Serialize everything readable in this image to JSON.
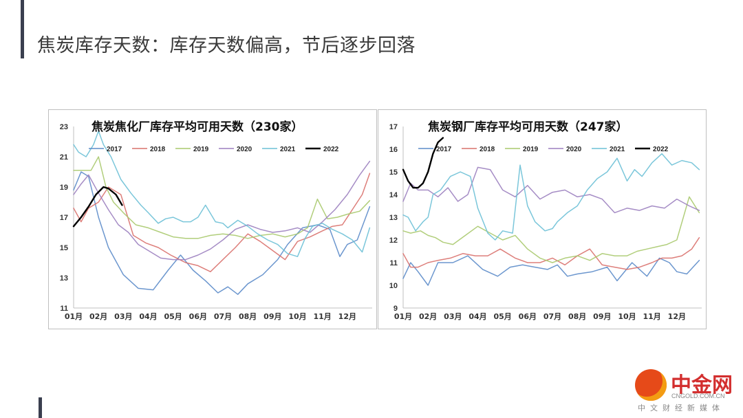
{
  "page": {
    "title": "焦炭库存天数：库存天数偏高，节后逐步回落"
  },
  "logo": {
    "name": "中金网",
    "domain": "CNGOLD.COM.CN",
    "tagline": "中文财经新媒体"
  },
  "chart_data": [
    {
      "type": "line",
      "title": "焦炭焦化厂库存平均可用天数（230家）",
      "xlabel": "",
      "ylabel": "",
      "x_ticks": [
        "01月",
        "02月",
        "03月",
        "04月",
        "05月",
        "06月",
        "07月",
        "08月",
        "09月",
        "10月",
        "11月",
        "12月"
      ],
      "ylim": [
        11,
        23
      ],
      "y_ticks": [
        11,
        13,
        15,
        17,
        19,
        21,
        23
      ],
      "legend_position": "top",
      "grid": false,
      "series": [
        {
          "name": "2017",
          "color": "#5b8bc9",
          "x": [
            0,
            0.3,
            0.6,
            1,
            1.4,
            2,
            2.6,
            3.2,
            3.8,
            4.3,
            4.8,
            5.3,
            5.8,
            6.2,
            6.6,
            7,
            7.6,
            8.2,
            8.6,
            9.2,
            9.8,
            10.3,
            10.7,
            11,
            11.4,
            11.9
          ],
          "values": [
            18.8,
            20.0,
            19.7,
            17.0,
            15.0,
            13.2,
            12.3,
            12.2,
            13.5,
            14.5,
            13.5,
            12.8,
            12.0,
            12.4,
            11.9,
            12.6,
            13.2,
            14.2,
            15.2,
            16.3,
            16.5,
            16.2,
            14.4,
            15.2,
            15.5,
            17.7
          ]
        },
        {
          "name": "2018",
          "color": "#d9706b",
          "x": [
            0,
            0.3,
            0.6,
            1,
            1.4,
            1.9,
            2.4,
            2.9,
            3.4,
            3.9,
            4.5,
            5,
            5.5,
            6,
            6.5,
            7,
            7.5,
            8,
            8.5,
            9,
            9.5,
            10,
            10.4,
            10.8,
            11.2,
            11.6,
            11.9
          ],
          "values": [
            17.6,
            16.7,
            17.6,
            18.0,
            19.0,
            18.5,
            15.8,
            15.3,
            15.0,
            14.5,
            14.0,
            13.8,
            13.4,
            14.2,
            15.0,
            15.9,
            15.4,
            14.8,
            14.2,
            15.4,
            15.7,
            16.1,
            16.4,
            16.5,
            17.5,
            18.5,
            19.9
          ]
        },
        {
          "name": "2019",
          "color": "#a8c96d",
          "x": [
            0,
            0.3,
            0.7,
            1,
            1.3,
            1.6,
            2,
            2.5,
            3,
            3.5,
            4,
            4.5,
            5,
            5.5,
            6,
            6.5,
            7,
            7.5,
            8,
            8.5,
            9,
            9.4,
            9.8,
            10.2,
            10.6,
            11,
            11.5,
            11.9
          ],
          "values": [
            20.1,
            20.1,
            20.1,
            21.0,
            19.0,
            18.0,
            17.3,
            16.5,
            16.3,
            16.0,
            15.7,
            15.6,
            15.6,
            15.8,
            15.9,
            15.8,
            15.6,
            15.8,
            15.9,
            15.7,
            15.9,
            16.3,
            18.2,
            16.9,
            17.0,
            17.2,
            17.4,
            18.1
          ]
        },
        {
          "name": "2020",
          "color": "#9b7fbf",
          "x": [
            0,
            0.3,
            0.6,
            1,
            1.4,
            1.8,
            2.2,
            2.6,
            3,
            3.5,
            4,
            4.5,
            5,
            5.5,
            6,
            6.5,
            7,
            7.5,
            8,
            8.5,
            9,
            9.5,
            10,
            10.5,
            11,
            11.5,
            11.9
          ],
          "values": [
            18.5,
            19.2,
            19.8,
            18.6,
            17.5,
            16.5,
            16.0,
            15.2,
            14.8,
            14.3,
            14.2,
            14.2,
            14.5,
            14.9,
            15.5,
            16.2,
            16.5,
            16.2,
            16.0,
            16.1,
            16.3,
            16.0,
            16.7,
            17.5,
            18.5,
            19.8,
            20.7
          ]
        },
        {
          "name": "2021",
          "color": "#6cc0d6",
          "x": [
            0,
            0.2,
            0.5,
            0.8,
            1,
            1.2,
            1.5,
            1.9,
            2.3,
            2.7,
            3,
            3.4,
            3.7,
            4,
            4.4,
            4.7,
            5,
            5.3,
            5.7,
            6,
            6.2,
            6.6,
            7,
            7.4,
            7.8,
            8.2,
            8.6,
            9,
            9.3,
            9.6,
            10,
            10.4,
            10.8,
            11.2,
            11.6,
            11.9
          ],
          "values": [
            21.8,
            21.3,
            21.0,
            21.8,
            22.7,
            21.8,
            21.0,
            19.5,
            18.6,
            17.8,
            17.3,
            16.6,
            16.9,
            17.0,
            16.7,
            16.7,
            17.0,
            17.8,
            16.7,
            16.6,
            16.3,
            16.8,
            16.4,
            15.9,
            15.5,
            15.2,
            14.6,
            14.4,
            15.6,
            16.4,
            16.6,
            16.2,
            15.9,
            15.5,
            14.7,
            16.3
          ]
        },
        {
          "name": "2022",
          "color": "#000000",
          "x": [
            0,
            0.3,
            0.6,
            0.9,
            1.2,
            1.4,
            1.7,
            1.95
          ],
          "values": [
            16.4,
            17.0,
            17.7,
            18.5,
            19.0,
            18.9,
            18.5,
            17.8
          ]
        }
      ]
    },
    {
      "type": "line",
      "title": "焦炭钢厂库存平均可用天数（247家）",
      "xlabel": "",
      "ylabel": "",
      "x_ticks": [
        "01月",
        "02月",
        "03月",
        "04月",
        "05月",
        "06月",
        "07月",
        "08月",
        "09月",
        "10月",
        "11月",
        "12月"
      ],
      "ylim": [
        9,
        17
      ],
      "y_ticks": [
        9,
        10,
        11,
        12,
        13,
        14,
        15,
        16,
        17
      ],
      "legend_position": "top",
      "grid": false,
      "series": [
        {
          "name": "2017",
          "color": "#5b8bc9",
          "x": [
            0,
            0.3,
            0.6,
            1,
            1.4,
            2,
            2.6,
            3.2,
            3.8,
            4.3,
            4.8,
            5.3,
            5.8,
            6.2,
            6.6,
            7,
            7.6,
            8.2,
            8.6,
            9.2,
            9.8,
            10.3,
            10.7,
            11,
            11.4,
            11.9
          ],
          "values": [
            10.3,
            11.0,
            10.6,
            10.0,
            11.0,
            11.0,
            11.3,
            10.7,
            10.4,
            10.8,
            10.9,
            10.8,
            10.7,
            10.9,
            10.4,
            10.5,
            10.6,
            10.8,
            10.2,
            11.0,
            10.4,
            11.2,
            11.0,
            10.6,
            10.5,
            11.1
          ]
        },
        {
          "name": "2018",
          "color": "#d9706b",
          "x": [
            0,
            0.3,
            0.6,
            1,
            1.4,
            1.9,
            2.4,
            2.9,
            3.4,
            3.9,
            4.5,
            5,
            5.5,
            6,
            6.5,
            7,
            7.5,
            8,
            8.5,
            9,
            9.5,
            10,
            10.4,
            10.8,
            11.2,
            11.6,
            11.9
          ],
          "values": [
            11.4,
            10.8,
            10.8,
            11.0,
            11.1,
            11.2,
            11.4,
            11.3,
            11.3,
            11.6,
            11.2,
            11.0,
            11.0,
            11.2,
            10.9,
            11.3,
            11.6,
            10.9,
            10.8,
            10.7,
            10.8,
            11.0,
            11.2,
            11.2,
            11.3,
            11.6,
            12.1
          ]
        },
        {
          "name": "2019",
          "color": "#a8c96d",
          "x": [
            0,
            0.3,
            0.7,
            1,
            1.3,
            1.6,
            2,
            2.5,
            3,
            3.5,
            4,
            4.5,
            5,
            5.5,
            6,
            6.5,
            7,
            7.5,
            8,
            8.5,
            9,
            9.4,
            9.8,
            10.2,
            10.6,
            11,
            11.5,
            11.9
          ],
          "values": [
            12.4,
            12.3,
            12.4,
            12.2,
            12.1,
            11.9,
            11.8,
            12.2,
            12.6,
            12.3,
            12.0,
            12.2,
            11.6,
            11.2,
            11.0,
            11.2,
            11.3,
            11.1,
            11.4,
            11.3,
            11.3,
            11.5,
            11.6,
            11.7,
            11.8,
            12.0,
            13.9,
            13.2
          ]
        },
        {
          "name": "2020",
          "color": "#9b7fbf",
          "x": [
            0,
            0.3,
            0.6,
            1,
            1.4,
            1.8,
            2.2,
            2.6,
            3,
            3.5,
            4,
            4.5,
            5,
            5.5,
            6,
            6.5,
            7,
            7.5,
            8,
            8.5,
            9,
            9.5,
            10,
            10.5,
            11,
            11.5,
            11.9
          ],
          "values": [
            13.7,
            14.5,
            14.2,
            14.2,
            13.9,
            14.3,
            13.7,
            14.0,
            15.2,
            15.1,
            14.2,
            13.9,
            14.4,
            13.8,
            14.1,
            14.2,
            13.9,
            14.0,
            13.8,
            13.2,
            13.4,
            13.3,
            13.5,
            13.4,
            13.8,
            13.5,
            13.3
          ]
        },
        {
          "name": "2021",
          "color": "#6cc0d6",
          "x": [
            0,
            0.2,
            0.5,
            0.8,
            1,
            1.2,
            1.5,
            1.9,
            2.3,
            2.7,
            3,
            3.4,
            3.7,
            4,
            4.4,
            4.7,
            5,
            5.3,
            5.7,
            6,
            6.2,
            6.6,
            7,
            7.4,
            7.8,
            8.2,
            8.6,
            9,
            9.3,
            9.6,
            10,
            10.4,
            10.8,
            11.2,
            11.6,
            11.9
          ],
          "values": [
            13.1,
            13.0,
            12.4,
            12.8,
            13.0,
            14.0,
            14.2,
            14.8,
            15.0,
            14.8,
            13.4,
            12.3,
            12.0,
            12.4,
            12.3,
            15.3,
            13.5,
            12.8,
            12.4,
            12.5,
            12.8,
            13.2,
            13.5,
            14.2,
            14.7,
            15.0,
            15.6,
            14.6,
            15.1,
            14.8,
            15.4,
            15.8,
            15.3,
            15.5,
            15.4,
            15.1
          ]
        },
        {
          "name": "2022",
          "color": "#000000",
          "x": [
            0,
            0.2,
            0.4,
            0.6,
            0.8,
            1.0,
            1.2,
            1.4,
            1.6
          ],
          "values": [
            15.1,
            14.6,
            14.3,
            14.3,
            14.5,
            15.0,
            15.8,
            16.3,
            16.5
          ]
        }
      ]
    }
  ]
}
